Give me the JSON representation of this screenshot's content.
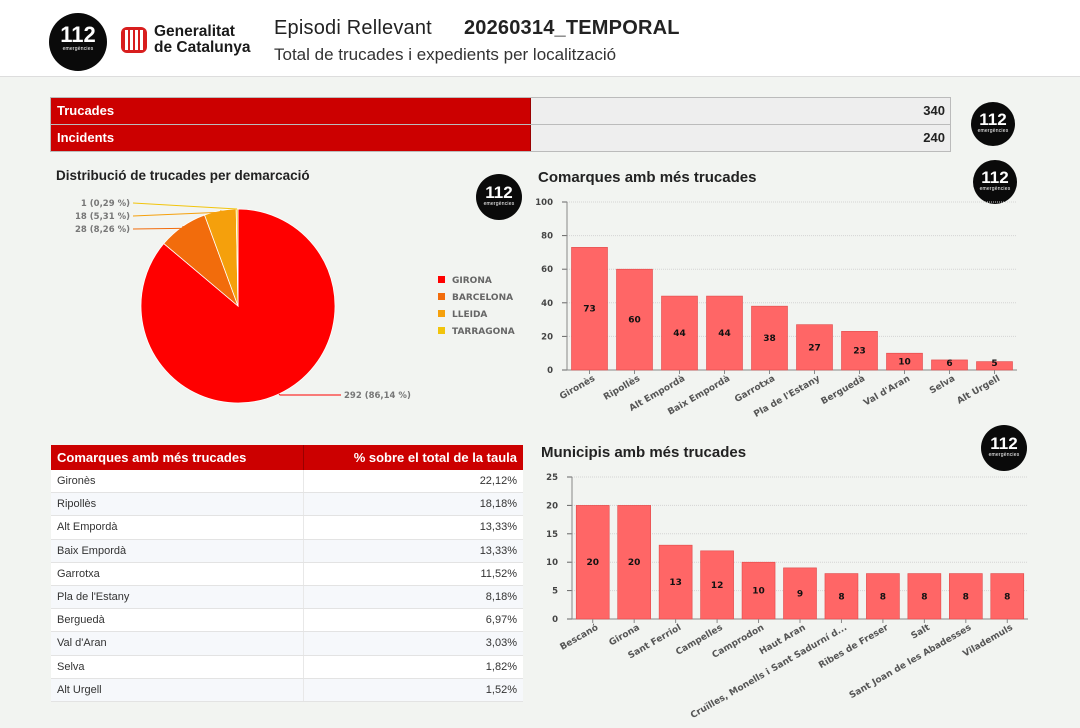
{
  "header": {
    "logo_number": "112",
    "logo_subtitle": "emergències",
    "generalitat_line1": "Generalitat",
    "generalitat_line2": "de Catalunya",
    "title": "Episodi Rellevant",
    "episode_code": "20260314_TEMPORAL",
    "subtitle": "Total de trucades i expedients per localització"
  },
  "summary": {
    "rows": [
      {
        "label": "Trucades",
        "value": "340"
      },
      {
        "label": "Incidents",
        "value": "240"
      }
    ]
  },
  "colors": {
    "brand_red": "#cc0000",
    "bar_fill": "#ff6666",
    "bar_stroke": "#e04848",
    "pie": [
      "#ff0000",
      "#f26c0c",
      "#f5a00c",
      "#f2c40c"
    ]
  },
  "chart_data": [
    {
      "type": "pie",
      "title": "Distribució de trucades per demarcació",
      "legend_position": "right",
      "series": [
        {
          "name": "GIRONA",
          "value": 292,
          "label": "292 (86,14 %)"
        },
        {
          "name": "BARCELONA",
          "value": 28,
          "label": "28 (8,26 %)"
        },
        {
          "name": "LLEIDA",
          "value": 18,
          "label": "18 (5,31 %)"
        },
        {
          "name": "TARRAGONA",
          "value": 1,
          "label": "1 (0,29 %)"
        }
      ]
    },
    {
      "type": "bar",
      "title": "Comarques amb més trucades",
      "categories": [
        "Gironès",
        "Ripollès",
        "Alt Empordà",
        "Baix Empordà",
        "Garrotxa",
        "Pla de l'Estany",
        "Berguedà",
        "Val d'Aran",
        "Selva",
        "Alt Urgell"
      ],
      "values": [
        73,
        60,
        44,
        44,
        38,
        27,
        23,
        10,
        6,
        5
      ],
      "ylim": [
        0,
        100
      ],
      "yticks": [
        0,
        20,
        40,
        60,
        80,
        100
      ],
      "grid": true
    },
    {
      "type": "bar",
      "title": "Municipis amb més trucades",
      "categories": [
        "Bescanó",
        "Girona",
        "Sant Ferriol",
        "Campelles",
        "Camprodon",
        "Haut Aran",
        "Cruïlles, Monells i Sant Sadurní d...",
        "Ribes de Freser",
        "Salt",
        "Sant Joan de les Abadesses",
        "Vilademuls"
      ],
      "values": [
        20,
        20,
        13,
        12,
        10,
        9,
        8,
        8,
        8,
        8,
        8
      ],
      "ylim": [
        0,
        25
      ],
      "yticks": [
        0,
        5,
        10,
        15,
        20,
        25
      ],
      "grid": true
    },
    {
      "type": "table",
      "columns": [
        "Comarques amb més trucades",
        "% sobre el total de la taula"
      ],
      "rows": [
        [
          "Gironès",
          "22,12%"
        ],
        [
          "Ripollès",
          "18,18%"
        ],
        [
          "Alt Empordà",
          "13,33%"
        ],
        [
          "Baix Empordà",
          "13,33%"
        ],
        [
          "Garrotxa",
          "11,52%"
        ],
        [
          "Pla de l'Estany",
          "8,18%"
        ],
        [
          "Berguedà",
          "6,97%"
        ],
        [
          "Val d'Aran",
          "3,03%"
        ],
        [
          "Selva",
          "1,82%"
        ],
        [
          "Alt Urgell",
          "1,52%"
        ]
      ]
    }
  ]
}
